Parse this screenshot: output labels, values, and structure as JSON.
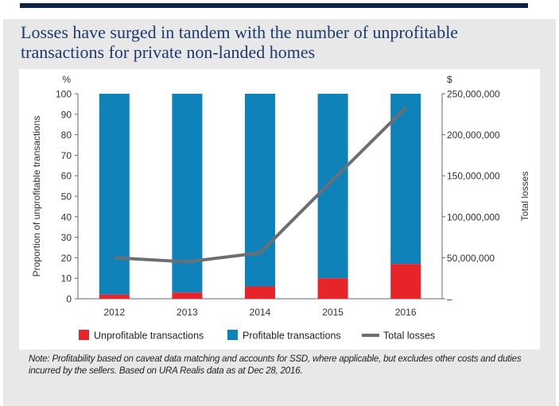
{
  "chart_data": {
    "type": "bar+line",
    "title": "Losses have surged in tandem with the number of unprofitable transactions for private non-landed homes",
    "categories": [
      "2012",
      "2013",
      "2014",
      "2015",
      "2016"
    ],
    "series": [
      {
        "name": "Unprofitable transactions",
        "axis": "left",
        "kind": "stacked-bar",
        "color": "#e8242b",
        "values": [
          2,
          3,
          6,
          10,
          17
        ]
      },
      {
        "name": "Profitable transactions",
        "axis": "left",
        "kind": "stacked-bar",
        "color": "#0f82b9",
        "values": [
          98,
          97,
          94,
          90,
          83
        ]
      },
      {
        "name": "Total losses",
        "axis": "right",
        "kind": "line",
        "color": "#6d6e71",
        "values": [
          50000000,
          45000000,
          56000000,
          145000000,
          233000000
        ]
      }
    ],
    "left_axis": {
      "unit": "%",
      "label": "Proportion of unprofitable transactions",
      "ylim": [
        0,
        100
      ],
      "ticks": [
        "0",
        "10",
        "20",
        "30",
        "40",
        "50",
        "60",
        "70",
        "80",
        "90",
        "100"
      ]
    },
    "right_axis": {
      "unit": "$",
      "label": "Total losses",
      "ylim": [
        0,
        250000000
      ],
      "tick_values": [
        0,
        50000000,
        100000000,
        150000000,
        200000000,
        250000000
      ],
      "ticks": [
        "–",
        "50,000,000",
        "100,000,000",
        "150,000,000",
        "200,000,000",
        "250,000,000"
      ]
    },
    "legend": {
      "position": "bottom",
      "items": [
        "Unprofitable transactions",
        "Profitable transactions",
        "Total losses"
      ]
    }
  },
  "note": "Note: Profitability based on caveat data matching and accounts for SSD, where applicable, but excludes other costs and duties incurred by the sellers. Based on URA Realis data as at Dec 28, 2016.",
  "colors": {
    "navy": "#0d2240",
    "title": "#1d3a6e",
    "panel": "#e8e8e8",
    "bar_red": "#e8242b",
    "bar_blue": "#0f82b9",
    "line_grey": "#6d6e71"
  }
}
